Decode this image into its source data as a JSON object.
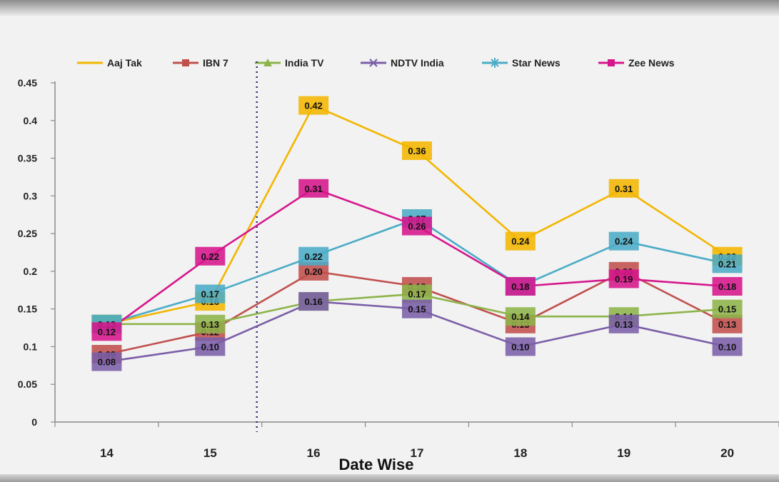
{
  "chart_data": {
    "type": "line",
    "title": "",
    "xlabel": "Date Wise",
    "ylabel": "",
    "categories": [
      "14",
      "15",
      "16",
      "17",
      "18",
      "19",
      "20"
    ],
    "ylim": [
      0,
      0.45
    ],
    "yticks": [
      "0",
      "0.05",
      "0.1",
      "0.15",
      "0.2",
      "0.25",
      "0.3",
      "0.35",
      "0.4",
      "0.45"
    ],
    "grid": false,
    "legend_position": "top",
    "series": [
      {
        "name": "Aaj Tak",
        "color": "#f2b600",
        "marker": "none",
        "values": [
          0.13,
          0.16,
          0.42,
          0.36,
          0.24,
          0.31,
          0.22
        ],
        "labels": [
          "0.13",
          "0.16",
          "0.42",
          "0.36",
          "0.24",
          "0.31",
          "0.22"
        ]
      },
      {
        "name": "IBN 7",
        "color": "#c0504d",
        "marker": "square",
        "values": [
          0.09,
          0.12,
          0.2,
          0.18,
          0.13,
          0.2,
          0.13
        ],
        "labels": [
          "0.09",
          "0.12",
          "0.20",
          "0.18",
          "0.13",
          "0.20",
          "0.13"
        ]
      },
      {
        "name": "India TV",
        "color": "#8db44a",
        "marker": "triangle",
        "values": [
          0.13,
          0.13,
          0.16,
          0.17,
          0.14,
          0.14,
          0.15
        ],
        "labels": [
          "0.13",
          "0.13",
          "0.16",
          "0.17",
          "0.14",
          "0.14",
          "0.15"
        ]
      },
      {
        "name": "NDTV India",
        "color": "#7b5ea7",
        "marker": "x",
        "values": [
          0.08,
          0.1,
          0.16,
          0.15,
          0.1,
          0.13,
          0.1
        ],
        "labels": [
          "0.08",
          "0.10",
          "0.16",
          "0.15",
          "0.10",
          "0.13",
          "0.10"
        ]
      },
      {
        "name": "Star News",
        "color": "#4bacc6",
        "marker": "star",
        "values": [
          0.13,
          0.17,
          0.22,
          0.27,
          0.18,
          0.24,
          0.21
        ],
        "labels": [
          "0.13",
          "0.17",
          "0.22",
          "0.27",
          "0.18",
          "0.24",
          "0.21"
        ]
      },
      {
        "name": "Zee News",
        "color": "#d6168c",
        "marker": "square",
        "values": [
          0.12,
          0.22,
          0.31,
          0.26,
          0.18,
          0.19,
          0.18
        ],
        "labels": [
          "0.12",
          "0.22",
          "0.31",
          "0.26",
          "0.18",
          "0.19",
          "0.18"
        ]
      }
    ],
    "annotations": [
      {
        "type": "vertical-dotted-line",
        "between_categories": [
          "15",
          "16"
        ]
      }
    ]
  }
}
